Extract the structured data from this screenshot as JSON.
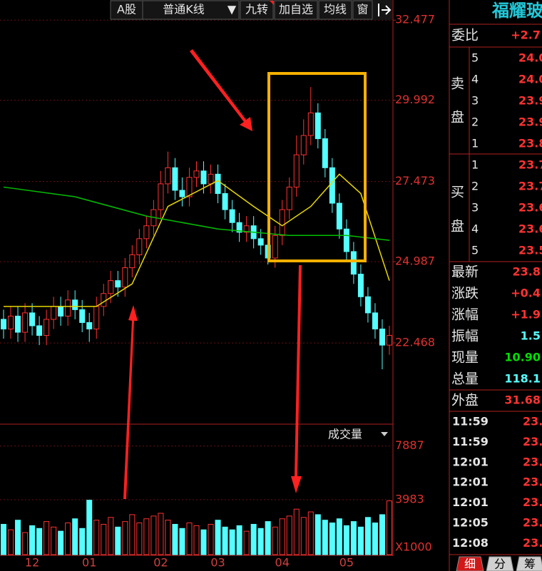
{
  "stock_name": "福耀玻",
  "toolbar": [
    "A股",
    "普通K线",
    "▼",
    "九转",
    "加自选",
    "均线",
    "窗"
  ],
  "chart_data": [
    {
      "type": "candlestick",
      "categories": [
        null,
        null,
        null,
        null,
        "12",
        null,
        null,
        null,
        null,
        null,
        null,
        null,
        "01",
        null,
        null,
        null,
        null,
        null,
        null,
        null,
        null,
        null,
        "02",
        null,
        null,
        null,
        null,
        null,
        null,
        null,
        "03",
        null,
        null,
        null,
        null,
        null,
        null,
        null,
        null,
        "04",
        null,
        null,
        null,
        null,
        null,
        null,
        null,
        null,
        "05",
        null,
        null,
        null,
        null,
        null,
        null
      ],
      "open": [
        23.2,
        22.9,
        23.3,
        22.8,
        23.4,
        23.0,
        22.7,
        23.2,
        23.6,
        23.3,
        23.8,
        23.5,
        23.1,
        22.9,
        23.6,
        24.0,
        24.4,
        24.2,
        24.8,
        25.2,
        25.7,
        26.1,
        26.6,
        27.4,
        27.9,
        27.2,
        27.0,
        27.6,
        27.8,
        27.4,
        27.7,
        27.1,
        26.6,
        26.2,
        25.9,
        26.1,
        25.7,
        25.5,
        25.1,
        25.8,
        26.6,
        27.3,
        28.3,
        28.9,
        29.6,
        28.8,
        27.9,
        26.8,
        26.0,
        25.3,
        24.6,
        23.9,
        23.4,
        22.9,
        22.4
      ],
      "high": [
        23.5,
        23.6,
        23.6,
        23.7,
        23.7,
        23.3,
        23.5,
        23.9,
        23.9,
        24.1,
        24.1,
        23.8,
        23.4,
        23.9,
        24.3,
        24.7,
        24.7,
        25.1,
        25.5,
        26.0,
        26.4,
        26.9,
        27.8,
        28.4,
        28.2,
        27.6,
        27.9,
        28.1,
        28.1,
        28.0,
        28.0,
        27.4,
        26.9,
        26.5,
        26.4,
        26.4,
        26.0,
        25.8,
        26.1,
        26.9,
        27.6,
        28.9,
        29.4,
        30.4,
        29.9,
        29.1,
        28.2,
        27.1,
        26.3,
        25.6,
        24.9,
        24.2,
        23.7,
        23.2,
        23.0
      ],
      "low": [
        22.6,
        22.6,
        22.5,
        22.5,
        22.7,
        22.4,
        22.4,
        22.9,
        23.0,
        23.0,
        23.2,
        22.8,
        22.5,
        22.6,
        23.3,
        23.7,
        23.9,
        23.9,
        24.5,
        24.9,
        25.4,
        25.8,
        26.3,
        27.1,
        26.9,
        26.7,
        26.7,
        27.3,
        27.1,
        27.1,
        26.8,
        26.3,
        25.9,
        25.6,
        25.6,
        25.4,
        25.2,
        24.9,
        24.8,
        25.5,
        26.3,
        27.0,
        28.0,
        28.6,
        28.5,
        27.6,
        26.5,
        25.7,
        25.0,
        24.3,
        23.6,
        23.1,
        22.6,
        21.65,
        22.1
      ],
      "close": [
        22.9,
        23.3,
        22.8,
        23.4,
        23.0,
        22.7,
        23.2,
        23.6,
        23.3,
        23.8,
        23.5,
        23.1,
        22.9,
        23.6,
        24.0,
        24.4,
        24.2,
        24.8,
        25.2,
        25.7,
        26.1,
        26.6,
        27.4,
        27.9,
        27.2,
        27.0,
        27.6,
        27.8,
        27.4,
        27.7,
        27.1,
        26.6,
        26.2,
        25.9,
        26.1,
        25.7,
        25.5,
        25.1,
        25.8,
        26.6,
        27.3,
        28.3,
        28.9,
        29.6,
        28.8,
        27.9,
        26.8,
        26.0,
        25.3,
        24.6,
        23.9,
        23.4,
        22.9,
        22.4,
        22.7
      ],
      "up_color": "#ff3232",
      "down_color": "#54ffff",
      "lines": [
        {
          "color": "#e8d800",
          "x": [
            0,
            13,
            18,
            23,
            30,
            35,
            39,
            43,
            47,
            50,
            54
          ],
          "values": [
            23.6,
            23.6,
            24.3,
            26.7,
            27.5,
            26.7,
            26.1,
            26.7,
            27.7,
            27.1,
            24.4
          ]
        },
        {
          "color": "#00c000",
          "x": [
            0,
            10,
            20,
            30,
            40,
            48,
            54
          ],
          "values": [
            27.3,
            27.0,
            26.4,
            26.0,
            25.8,
            25.8,
            25.65
          ]
        }
      ],
      "ylim": [
        19.95,
        33.1
      ],
      "yticks": [
        32.477,
        29.992,
        27.473,
        24.987,
        22.468
      ],
      "grid": true
    },
    {
      "type": "bar",
      "title": "成交量",
      "values": [
        2200,
        1800,
        2500,
        1600,
        2100,
        1900,
        2400,
        2000,
        1700,
        2300,
        2600,
        1900,
        3950,
        2500,
        2200,
        2700,
        2000,
        2400,
        2900,
        2300,
        2600,
        2800,
        3000,
        2500,
        2200,
        1900,
        2300,
        2100,
        1800,
        2200,
        2500,
        2000,
        1800,
        2100,
        1700,
        2200,
        1900,
        2400,
        2000,
        2600,
        2800,
        3300,
        2700,
        3100,
        2900,
        2500,
        2300,
        2600,
        2100,
        2400,
        2000,
        2700,
        2300,
        2900,
        3900
      ],
      "ylim": [
        0,
        9365
      ],
      "yticks": [
        7887,
        3983
      ],
      "unit_label": "X1000",
      "grid": true
    }
  ],
  "quote": {
    "wei_bi": {
      "label": "委比",
      "value": "+2.7"
    },
    "sell": {
      "label": [
        "卖",
        "盘"
      ],
      "levels": [
        "5",
        "4",
        "3",
        "2",
        "1"
      ],
      "prices": [
        "24.0",
        "24.0",
        "23.9",
        "23.9",
        "23.8"
      ]
    },
    "buy": {
      "label": [
        "买",
        "盘"
      ],
      "levels": [
        "1",
        "2",
        "3",
        "4",
        "5"
      ],
      "prices": [
        "23.7",
        "23.7",
        "23.6",
        "23.6",
        "23.5"
      ]
    },
    "stats": [
      {
        "label": "最新",
        "value": "23.8",
        "color": "#ff3232"
      },
      {
        "label": "涨跌",
        "value": "+0.4",
        "color": "#ff3232"
      },
      {
        "label": "涨幅",
        "value": "+1.9",
        "color": "#ff3232"
      },
      {
        "label": "振幅",
        "value": "1.5",
        "color": "#54ffff"
      },
      {
        "label": "现量",
        "value": "10.90",
        "color": "#00e000"
      },
      {
        "label": "总量",
        "value": "118.1",
        "color": "#54ffff"
      },
      {
        "label": "外盘",
        "value": "31.68",
        "color": "#ff3232"
      }
    ],
    "ticks": [
      {
        "time": "11:59",
        "price": "23."
      },
      {
        "time": "11:59",
        "price": "23."
      },
      {
        "time": "12:01",
        "price": "23."
      },
      {
        "time": "12:01",
        "price": "23."
      },
      {
        "time": "12:01",
        "price": "23."
      },
      {
        "time": "12:05",
        "price": "23."
      },
      {
        "time": "12:08",
        "price": "23."
      }
    ],
    "tabs": [
      "细",
      "分",
      "筹"
    ]
  }
}
